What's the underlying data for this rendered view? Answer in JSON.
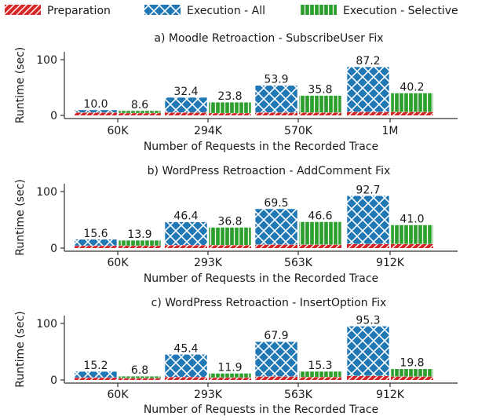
{
  "legend": [
    {
      "label": "Preparation",
      "color": "#d62728",
      "pattern": "slash"
    },
    {
      "label": "Execution - All",
      "color": "#1f77b4",
      "pattern": "cross"
    },
    {
      "label": "Execution - Selective",
      "color": "#2ca02c",
      "pattern": "vline"
    }
  ],
  "colors": {
    "preparation": "#d62728",
    "execution_all": "#1f77b4",
    "execution_selective": "#2ca02c"
  },
  "chart_data": [
    {
      "type": "bar",
      "title": "a) Moodle Retroaction - SubscribeUser Fix",
      "xlabel": "Number of Requests in the Recorded Trace",
      "ylabel": "Runtime (sec)",
      "ylim": [
        0,
        100
      ],
      "yticks": [
        0,
        100
      ],
      "categories": [
        "60K",
        "294K",
        "570K",
        "1M"
      ],
      "series": [
        {
          "name": "Execution - All",
          "values": [
            10.0,
            32.4,
            53.9,
            87.2
          ],
          "labels": [
            "10.0",
            "32.4",
            "53.9",
            "87.2"
          ],
          "preparation": [
            5,
            5,
            5,
            6
          ]
        },
        {
          "name": "Execution - Selective",
          "values": [
            8.6,
            23.8,
            35.8,
            40.2
          ],
          "labels": [
            "8.6",
            "23.8",
            "35.8",
            "40.2"
          ],
          "preparation": [
            4,
            4,
            5,
            6
          ]
        }
      ]
    },
    {
      "type": "bar",
      "title": "b) WordPress Retroaction - AddComment Fix",
      "xlabel": "Number of Requests in the Recorded Trace",
      "ylabel": "Runtime (sec)",
      "ylim": [
        0,
        100
      ],
      "yticks": [
        0,
        100
      ],
      "categories": [
        "60K",
        "293K",
        "563K",
        "912K"
      ],
      "series": [
        {
          "name": "Execution - All",
          "values": [
            15.6,
            46.4,
            69.5,
            92.7
          ],
          "labels": [
            "15.6",
            "46.4",
            "69.5",
            "92.7"
          ],
          "preparation": [
            4,
            5,
            6,
            7
          ]
        },
        {
          "name": "Execution - Selective",
          "values": [
            13.9,
            36.8,
            46.6,
            41.0
          ],
          "labels": [
            "13.9",
            "36.8",
            "46.6",
            "41.0"
          ],
          "preparation": [
            4,
            5,
            6,
            7
          ]
        }
      ]
    },
    {
      "type": "bar",
      "title": "c) WordPress Retroaction - InsertOption Fix",
      "xlabel": "Number of Requests in the Recorded Trace",
      "ylabel": "Runtime (sec)",
      "ylim": [
        0,
        100
      ],
      "yticks": [
        0,
        100
      ],
      "categories": [
        "60K",
        "293K",
        "563K",
        "912K"
      ],
      "series": [
        {
          "name": "Execution - All",
          "values": [
            15.2,
            45.4,
            67.9,
            95.3
          ],
          "labels": [
            "15.2",
            "45.4",
            "67.9",
            "95.3"
          ],
          "preparation": [
            4,
            5,
            6,
            7
          ]
        },
        {
          "name": "Execution - Selective",
          "values": [
            6.8,
            11.9,
            15.3,
            19.8
          ],
          "labels": [
            "6.8",
            "11.9",
            "15.3",
            "19.8"
          ],
          "preparation": [
            3,
            4,
            5,
            6
          ]
        }
      ]
    }
  ]
}
